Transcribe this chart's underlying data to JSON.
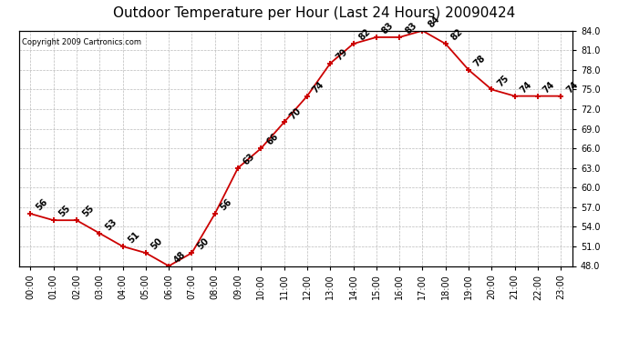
{
  "title": "Outdoor Temperature per Hour (Last 24 Hours) 20090424",
  "copyright": "Copyright 2009 Cartronics.com",
  "hours": [
    "00:00",
    "01:00",
    "02:00",
    "03:00",
    "04:00",
    "05:00",
    "06:00",
    "07:00",
    "08:00",
    "09:00",
    "10:00",
    "11:00",
    "12:00",
    "13:00",
    "14:00",
    "15:00",
    "16:00",
    "17:00",
    "18:00",
    "19:00",
    "20:00",
    "21:00",
    "22:00",
    "23:00"
  ],
  "temps": [
    56,
    55,
    55,
    53,
    51,
    50,
    48,
    50,
    56,
    63,
    66,
    70,
    74,
    79,
    82,
    83,
    83,
    84,
    82,
    78,
    75,
    74,
    74,
    74
  ],
  "line_color": "#cc0000",
  "bg_color": "#ffffff",
  "grid_color": "#bbbbbb",
  "ylim_min": 48.0,
  "ylim_max": 84.0,
  "ytick_step": 3.0,
  "title_fontsize": 11,
  "tick_fontsize": 7,
  "annotation_fontsize": 7,
  "copyright_fontsize": 6
}
